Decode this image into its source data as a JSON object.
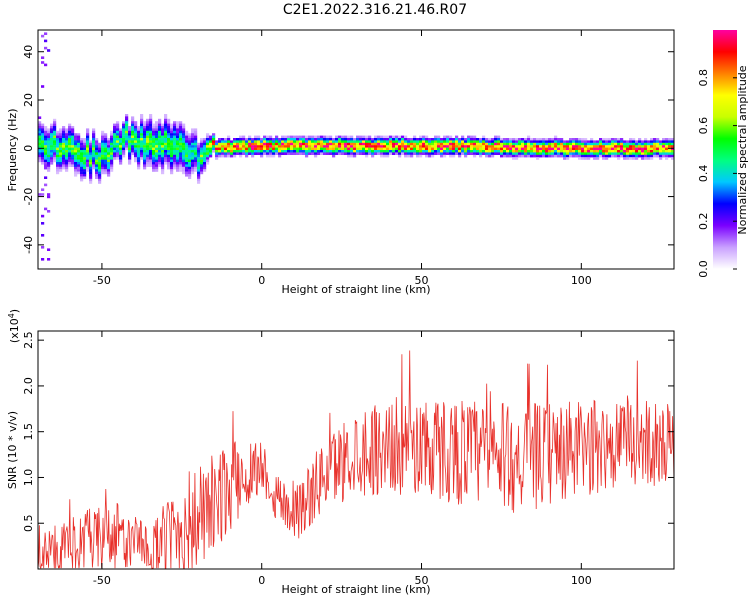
{
  "title": "C2E1.2022.316.21.46.R07",
  "chart_data": [
    {
      "type": "heatmap",
      "xlabel": "Height of straight line (km)",
      "ylabel": "Frequency (Hz)",
      "xlim": [
        -70,
        129
      ],
      "ylim": [
        -50,
        49
      ],
      "xticks": [
        -50,
        0,
        50,
        100
      ],
      "yticks": [
        -40,
        -20,
        0,
        20,
        40
      ],
      "colorbar": {
        "label": "Normalized spectral amplitude",
        "range": [
          0,
          1
        ],
        "ticks": [
          "0.0",
          "0.2",
          "0.4",
          "0.6",
          "0.8"
        ],
        "colormap": [
          "#ffffff",
          "#c9a0ff",
          "#7a00ff",
          "#0000ff",
          "#00c8ff",
          "#00ff80",
          "#00ff00",
          "#c8ff00",
          "#ffff00",
          "#ff8000",
          "#ff0000",
          "#ff00a0"
        ]
      },
      "ridge": [
        {
          "x": -70,
          "f": 2,
          "spread": 6,
          "amp": 0.5
        },
        {
          "x": -60,
          "f": 0,
          "spread": 6,
          "amp": 0.55
        },
        {
          "x": -50,
          "f": -4,
          "spread": 6,
          "amp": 0.5
        },
        {
          "x": -43,
          "f": 4,
          "spread": 5,
          "amp": 0.55
        },
        {
          "x": -35,
          "f": 2,
          "spread": 7,
          "amp": 0.55
        },
        {
          "x": -25,
          "f": 0,
          "spread": 7,
          "amp": 0.5
        },
        {
          "x": -20,
          "f": -4,
          "spread": 6,
          "amp": 0.45
        },
        {
          "x": -15,
          "f": 0,
          "spread": 2.5,
          "amp": 0.8
        },
        {
          "x": 0,
          "f": 1,
          "spread": 2.5,
          "amp": 0.9
        },
        {
          "x": 50,
          "f": 1,
          "spread": 2.5,
          "amp": 0.9
        },
        {
          "x": 100,
          "f": 0,
          "spread": 2.5,
          "amp": 0.9
        },
        {
          "x": 129,
          "f": 0,
          "spread": 2.5,
          "amp": 0.9
        }
      ]
    },
    {
      "type": "line",
      "xlabel": "Height of straight line (km)",
      "ylabel": "SNR (10 * v/v)",
      "multiplier_label": "(x10",
      "multiplier_exp": "4",
      "multiplier_close": ")",
      "xlim": [
        -70,
        129
      ],
      "ylim": [
        0,
        2.6
      ],
      "xticks": [
        -50,
        0,
        50,
        100
      ],
      "yticks": [
        0.5,
        1.0,
        1.5,
        2.0,
        2.5
      ],
      "ytick_labels": [
        "0.5",
        "1.0",
        "1.5",
        "2.0",
        "2.5"
      ],
      "color": "#e8302a",
      "envelope": [
        {
          "x": -70,
          "mean": 0.15,
          "amp": 0.25
        },
        {
          "x": -55,
          "mean": 0.3,
          "amp": 0.35
        },
        {
          "x": -45,
          "mean": 0.35,
          "amp": 0.4
        },
        {
          "x": -35,
          "mean": 0.2,
          "amp": 0.25
        },
        {
          "x": -25,
          "mean": 0.45,
          "amp": 0.6
        },
        {
          "x": -17,
          "mean": 0.6,
          "amp": 0.6
        },
        {
          "x": -10,
          "mean": 0.9,
          "amp": 0.5
        },
        {
          "x": 0,
          "mean": 1.15,
          "amp": 0.3
        },
        {
          "x": 5,
          "mean": 0.75,
          "amp": 0.3
        },
        {
          "x": 12,
          "mean": 0.65,
          "amp": 0.35
        },
        {
          "x": 20,
          "mean": 1.05,
          "amp": 0.4
        },
        {
          "x": 30,
          "mean": 1.3,
          "amp": 0.5
        },
        {
          "x": 45,
          "mean": 1.35,
          "amp": 0.55
        },
        {
          "x": 60,
          "mean": 1.3,
          "amp": 0.6
        },
        {
          "x": 80,
          "mean": 1.2,
          "amp": 0.6
        },
        {
          "x": 100,
          "mean": 1.3,
          "amp": 0.55
        },
        {
          "x": 115,
          "mean": 1.4,
          "amp": 0.5
        },
        {
          "x": 129,
          "mean": 1.35,
          "amp": 0.45
        }
      ]
    }
  ]
}
